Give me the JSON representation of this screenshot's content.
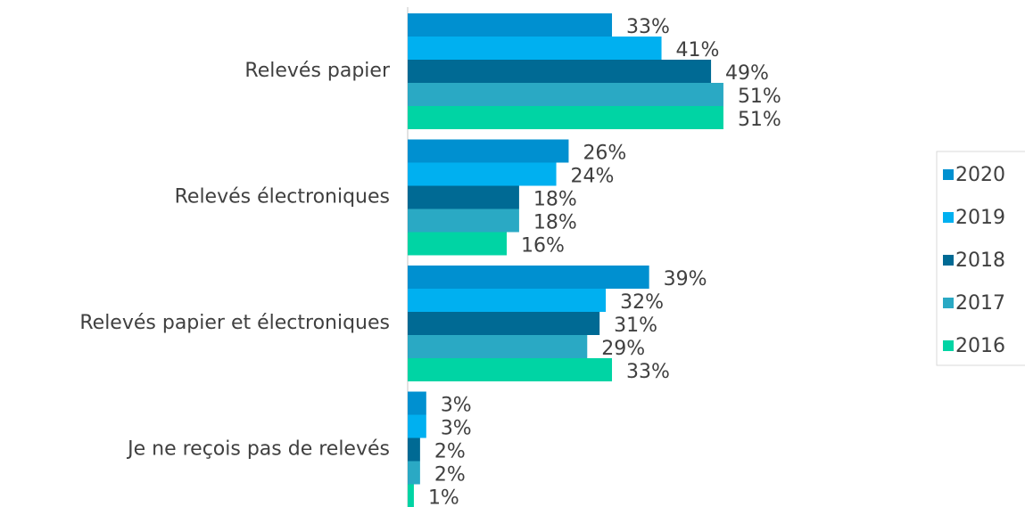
{
  "chart_data": {
    "type": "hbar",
    "categories": [
      "Relevés papier",
      "Relevés électroniques",
      "Relevés papier et électroniques",
      "Je ne reçois pas de relevés"
    ],
    "series": [
      {
        "name": "2020",
        "color": "#0090d0",
        "values": [
          33,
          26,
          39,
          3
        ],
        "value_labels": [
          "33%",
          "26%",
          "39%",
          "3%"
        ]
      },
      {
        "name": "2019",
        "color": "#00b0f0",
        "values": [
          41,
          24,
          32,
          3
        ],
        "value_labels": [
          "41%",
          "24%",
          "32%",
          "3%"
        ]
      },
      {
        "name": "2018",
        "color": "#006a94",
        "values": [
          49,
          18,
          31,
          2
        ],
        "value_labels": [
          "49%",
          "18%",
          "31%",
          "2%"
        ]
      },
      {
        "name": "2017",
        "color": "#2aa9c4",
        "values": [
          51,
          18,
          29,
          2
        ],
        "value_labels": [
          "51%",
          "18%",
          "29%",
          "2%"
        ]
      },
      {
        "name": "2016",
        "color": "#00d4a4",
        "values": [
          51,
          16,
          33,
          1
        ],
        "value_labels": [
          "51%",
          "16%",
          "33%",
          "1%"
        ]
      }
    ],
    "legend": "right"
  }
}
